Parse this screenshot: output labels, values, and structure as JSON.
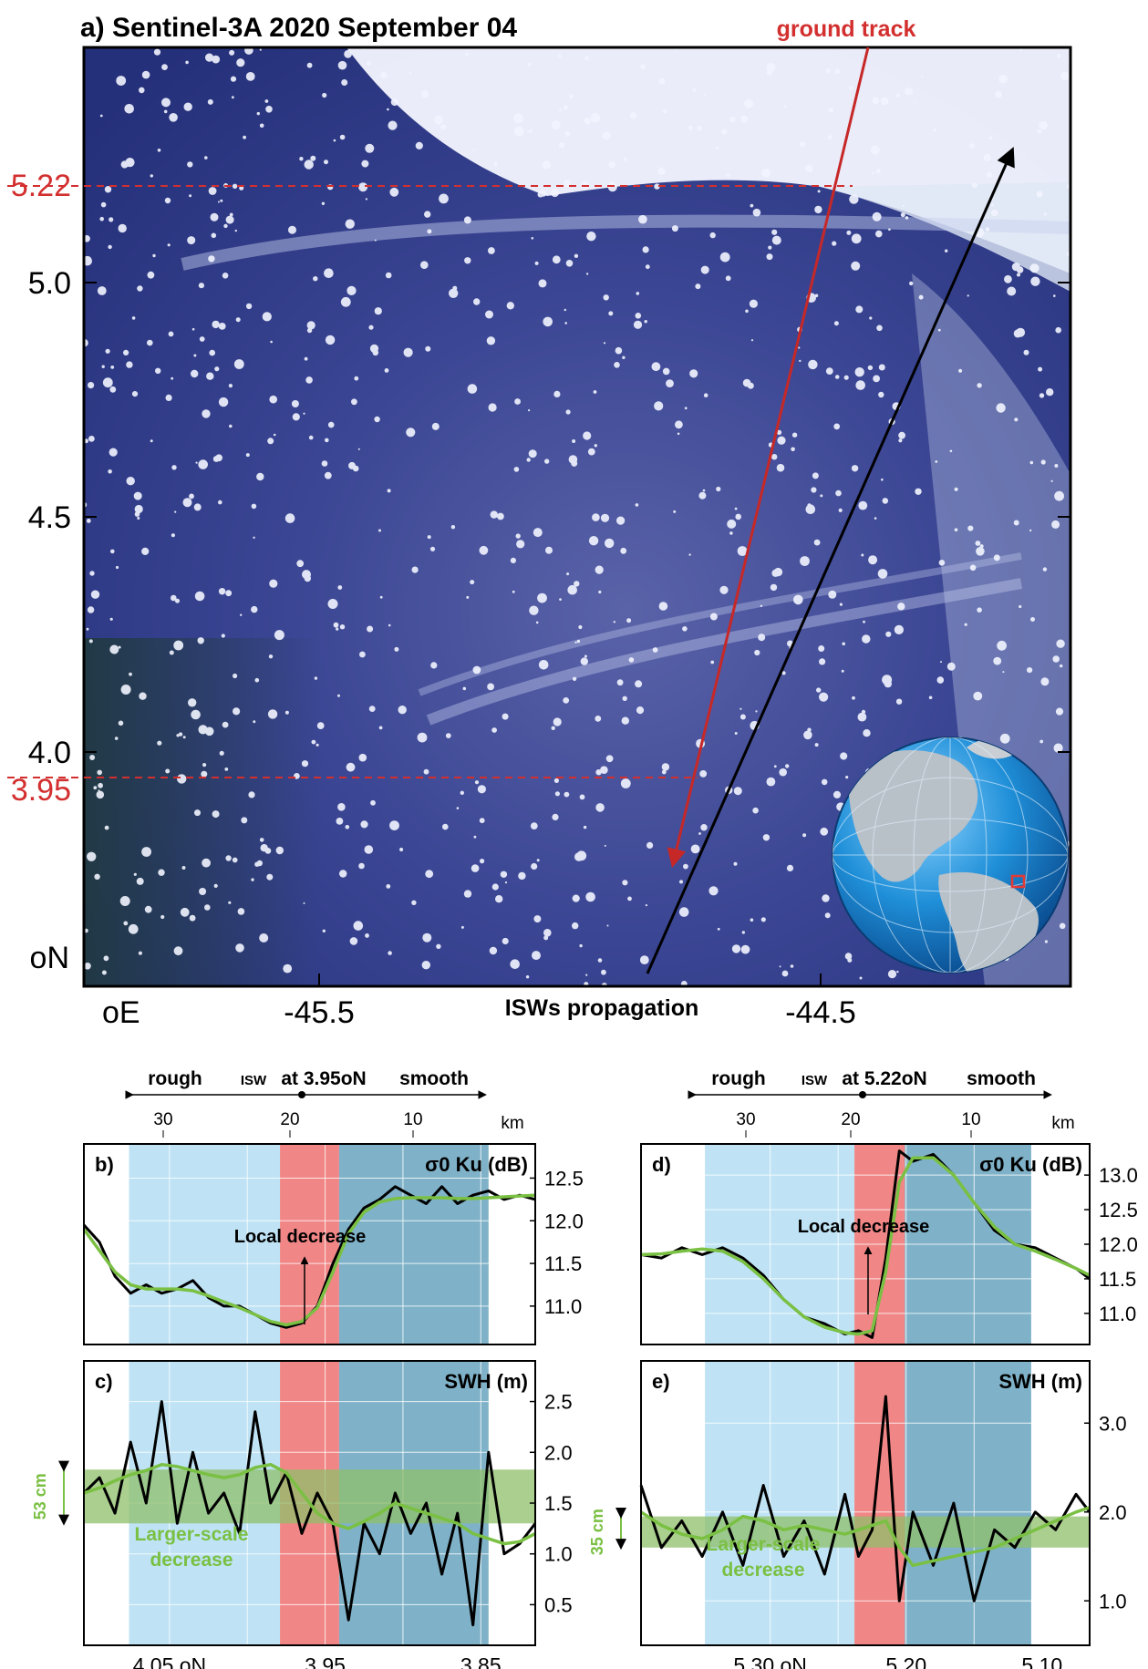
{
  "colors": {
    "red": "#d32f2f",
    "black": "#000000",
    "green": "#7ac043",
    "rough_shade": "#bfe3f5",
    "isw_shade": "#f08080",
    "smooth_shade": "#7fb2c8",
    "band_shade": "#8fbf6a",
    "ocean": "#34439a",
    "cloud": "#f3f6ff"
  },
  "panel_a": {
    "title": "a) Sentinel-3A 2020 September 04",
    "ground_track_label": "ground track",
    "isw_label": "ISWs propagation",
    "lat_ticks": [
      "5.0",
      "4.5",
      "4.0"
    ],
    "lat_red_ticks": [
      "5.22",
      "3.95"
    ],
    "lat_unit": "oN",
    "lon_unit": "oE",
    "lon_ticks": [
      "-45.5",
      "-44.5"
    ],
    "globe_icon": "globe-americas-icon"
  },
  "header_left": {
    "rough": "rough",
    "isw": "ISW",
    "at": "at 3.95oN",
    "smooth": "smooth",
    "km_ticks": [
      "30",
      "20",
      "10"
    ],
    "km_unit": "km"
  },
  "header_right": {
    "rough": "rough",
    "isw": "ISW",
    "at": "at 5.22oN",
    "smooth": "smooth",
    "km_ticks": [
      "30",
      "20",
      "10"
    ],
    "km_unit": "km"
  },
  "panel_b": {
    "label": "b)",
    "title": "σ0 Ku (dB)",
    "annotation": "Local decrease",
    "ticks": [
      "12.5",
      "12.0",
      "11.5",
      "11.0"
    ]
  },
  "panel_c": {
    "label": "c)",
    "title": "SWH (m)",
    "annotation": "Larger-scale\ndecrease",
    "band_label": "53 cm",
    "ticks": [
      "2.5",
      "2.0",
      "1.5",
      "1.0",
      "0.5"
    ],
    "x_ticks": [
      "4.05 oN",
      "3.95",
      "3.85"
    ]
  },
  "panel_d": {
    "label": "d)",
    "title": "σ0 Ku (dB)",
    "annotation": "Local decrease",
    "ticks": [
      "13.0",
      "12.5",
      "12.0",
      "11.5",
      "11.0"
    ]
  },
  "panel_e": {
    "label": "e)",
    "title": "SWH (m)",
    "annotation": "Larger-scale\ndecrease",
    "band_label": "35 cm",
    "ticks": [
      "3.0",
      "2.0",
      "1.0"
    ],
    "x_ticks": [
      "5.30 oN",
      "5.20",
      "5.10"
    ]
  },
  "chart_data": [
    {
      "type": "line",
      "panel": "b",
      "title": "σ0 Ku (dB)",
      "xlabel": "",
      "ylabel": "",
      "xlim": [
        4.105,
        3.815
      ],
      "ylim": [
        10.55,
        12.9
      ],
      "regions": [
        {
          "name": "rough",
          "from": 4.076,
          "to": 3.979
        },
        {
          "name": "ISW",
          "from": 3.979,
          "to": 3.941
        },
        {
          "name": "smooth",
          "from": 3.941,
          "to": 3.845
        }
      ],
      "series": [
        {
          "style": "raw",
          "x": [
            4.105,
            4.095,
            4.085,
            4.075,
            4.065,
            4.055,
            4.045,
            4.035,
            4.025,
            4.015,
            4.005,
            3.995,
            3.985,
            3.975,
            3.965,
            3.955,
            3.945,
            3.935,
            3.925,
            3.915,
            3.905,
            3.895,
            3.885,
            3.875,
            3.865,
            3.855,
            3.845,
            3.835,
            3.825,
            3.815
          ],
          "y": [
            11.95,
            11.75,
            11.35,
            11.15,
            11.25,
            11.15,
            11.2,
            11.3,
            11.1,
            11.0,
            11.0,
            10.9,
            10.8,
            10.75,
            10.8,
            11.0,
            11.5,
            11.9,
            12.15,
            12.25,
            12.4,
            12.3,
            12.2,
            12.4,
            12.2,
            12.3,
            12.35,
            12.25,
            12.3,
            12.25
          ]
        },
        {
          "style": "smooth",
          "x": [
            4.105,
            4.095,
            4.085,
            4.075,
            4.065,
            4.055,
            4.045,
            4.035,
            4.025,
            4.015,
            4.005,
            3.995,
            3.985,
            3.975,
            3.965,
            3.955,
            3.945,
            3.935,
            3.925,
            3.915,
            3.905,
            3.895,
            3.885,
            3.875,
            3.865,
            3.855,
            3.845,
            3.835,
            3.825,
            3.815
          ],
          "y": [
            11.9,
            11.65,
            11.4,
            11.25,
            11.2,
            11.2,
            11.2,
            11.18,
            11.12,
            11.05,
            10.98,
            10.9,
            10.82,
            10.78,
            10.82,
            10.98,
            11.4,
            11.85,
            12.1,
            12.22,
            12.26,
            12.27,
            12.27,
            12.27,
            12.26,
            12.26,
            12.27,
            12.28,
            12.29,
            12.3
          ]
        }
      ]
    },
    {
      "type": "line",
      "panel": "c",
      "title": "SWH (m)",
      "xlabel": "",
      "ylabel": "",
      "xlim": [
        4.105,
        3.815
      ],
      "ylim": [
        0.1,
        2.9
      ],
      "band": {
        "from": 1.3,
        "to": 1.83
      },
      "series": [
        {
          "style": "raw",
          "x": [
            4.105,
            4.095,
            4.085,
            4.075,
            4.065,
            4.055,
            4.045,
            4.035,
            4.025,
            4.015,
            4.005,
            3.995,
            3.985,
            3.975,
            3.965,
            3.955,
            3.945,
            3.935,
            3.925,
            3.915,
            3.905,
            3.895,
            3.885,
            3.875,
            3.865,
            3.855,
            3.845,
            3.835,
            3.825,
            3.815
          ],
          "y": [
            1.6,
            1.75,
            1.4,
            2.1,
            1.5,
            2.5,
            1.3,
            2.0,
            1.4,
            1.6,
            1.2,
            2.4,
            1.5,
            1.8,
            1.2,
            1.6,
            1.3,
            0.35,
            1.3,
            1.0,
            1.6,
            1.2,
            1.5,
            0.8,
            1.4,
            0.3,
            2.0,
            1.0,
            1.1,
            1.3
          ]
        },
        {
          "style": "smooth",
          "x": [
            4.105,
            4.095,
            4.085,
            4.075,
            4.065,
            4.055,
            4.045,
            4.035,
            4.025,
            4.015,
            4.005,
            3.995,
            3.985,
            3.975,
            3.965,
            3.955,
            3.945,
            3.935,
            3.925,
            3.915,
            3.905,
            3.895,
            3.885,
            3.875,
            3.865,
            3.855,
            3.845,
            3.835,
            3.825,
            3.815
          ],
          "y": [
            1.6,
            1.65,
            1.72,
            1.78,
            1.82,
            1.88,
            1.86,
            1.82,
            1.78,
            1.75,
            1.78,
            1.85,
            1.88,
            1.8,
            1.6,
            1.4,
            1.3,
            1.25,
            1.32,
            1.4,
            1.5,
            1.45,
            1.4,
            1.35,
            1.3,
            1.2,
            1.15,
            1.1,
            1.12,
            1.2
          ]
        }
      ]
    },
    {
      "type": "line",
      "panel": "d",
      "title": "σ0 Ku (dB)",
      "xlabel": "",
      "ylabel": "",
      "xlim": [
        5.395,
        5.065
      ],
      "ylim": [
        10.55,
        13.45
      ],
      "regions": [
        {
          "name": "rough",
          "from": 5.348,
          "to": 5.238
        },
        {
          "name": "ISW",
          "from": 5.238,
          "to": 5.201
        },
        {
          "name": "smooth",
          "from": 5.201,
          "to": 5.108
        }
      ],
      "series": [
        {
          "style": "raw",
          "x": [
            5.395,
            5.38,
            5.365,
            5.35,
            5.335,
            5.32,
            5.305,
            5.29,
            5.275,
            5.26,
            5.245,
            5.235,
            5.225,
            5.215,
            5.205,
            5.195,
            5.18,
            5.165,
            5.15,
            5.135,
            5.12,
            5.105,
            5.09,
            5.075,
            5.065
          ],
          "y": [
            11.85,
            11.8,
            11.95,
            11.85,
            11.95,
            11.8,
            11.55,
            11.2,
            10.95,
            10.85,
            10.7,
            10.75,
            10.65,
            11.8,
            13.35,
            13.2,
            13.3,
            13.0,
            12.6,
            12.2,
            12.0,
            11.95,
            11.8,
            11.65,
            11.5
          ]
        },
        {
          "style": "smooth",
          "x": [
            5.395,
            5.38,
            5.365,
            5.35,
            5.335,
            5.32,
            5.305,
            5.29,
            5.275,
            5.26,
            5.245,
            5.235,
            5.225,
            5.215,
            5.205,
            5.195,
            5.18,
            5.165,
            5.15,
            5.135,
            5.12,
            5.105,
            5.09,
            5.075,
            5.065
          ],
          "y": [
            11.85,
            11.86,
            11.9,
            11.93,
            11.9,
            11.75,
            11.5,
            11.2,
            10.95,
            10.8,
            10.72,
            10.7,
            10.75,
            11.6,
            12.9,
            13.25,
            13.25,
            13.0,
            12.6,
            12.25,
            12.0,
            11.9,
            11.78,
            11.65,
            11.55
          ]
        }
      ]
    },
    {
      "type": "line",
      "panel": "e",
      "title": "SWH (m)",
      "xlabel": "",
      "ylabel": "",
      "xlim": [
        5.395,
        5.065
      ],
      "ylim": [
        0.5,
        3.7
      ],
      "band": {
        "from": 1.6,
        "to": 1.95
      },
      "series": [
        {
          "style": "raw",
          "x": [
            5.395,
            5.38,
            5.365,
            5.35,
            5.335,
            5.32,
            5.305,
            5.29,
            5.275,
            5.26,
            5.245,
            5.235,
            5.225,
            5.215,
            5.205,
            5.195,
            5.18,
            5.165,
            5.15,
            5.135,
            5.12,
            5.105,
            5.09,
            5.075,
            5.065
          ],
          "y": [
            2.3,
            1.6,
            1.9,
            1.5,
            2.0,
            1.4,
            2.3,
            1.5,
            1.9,
            1.3,
            2.2,
            1.5,
            1.8,
            3.3,
            1.0,
            2.0,
            1.4,
            2.1,
            1.0,
            1.8,
            1.6,
            2.0,
            1.8,
            2.2,
            2.0
          ]
        },
        {
          "style": "smooth",
          "x": [
            5.395,
            5.38,
            5.365,
            5.35,
            5.335,
            5.32,
            5.305,
            5.29,
            5.275,
            5.26,
            5.245,
            5.235,
            5.225,
            5.215,
            5.205,
            5.195,
            5.18,
            5.165,
            5.15,
            5.135,
            5.12,
            5.105,
            5.09,
            5.075,
            5.065
          ],
          "y": [
            2.0,
            1.85,
            1.75,
            1.7,
            1.8,
            1.95,
            1.9,
            1.8,
            1.85,
            1.8,
            1.75,
            1.8,
            1.85,
            1.9,
            1.6,
            1.4,
            1.45,
            1.5,
            1.55,
            1.6,
            1.7,
            1.8,
            1.9,
            2.0,
            2.05
          ]
        }
      ]
    }
  ]
}
